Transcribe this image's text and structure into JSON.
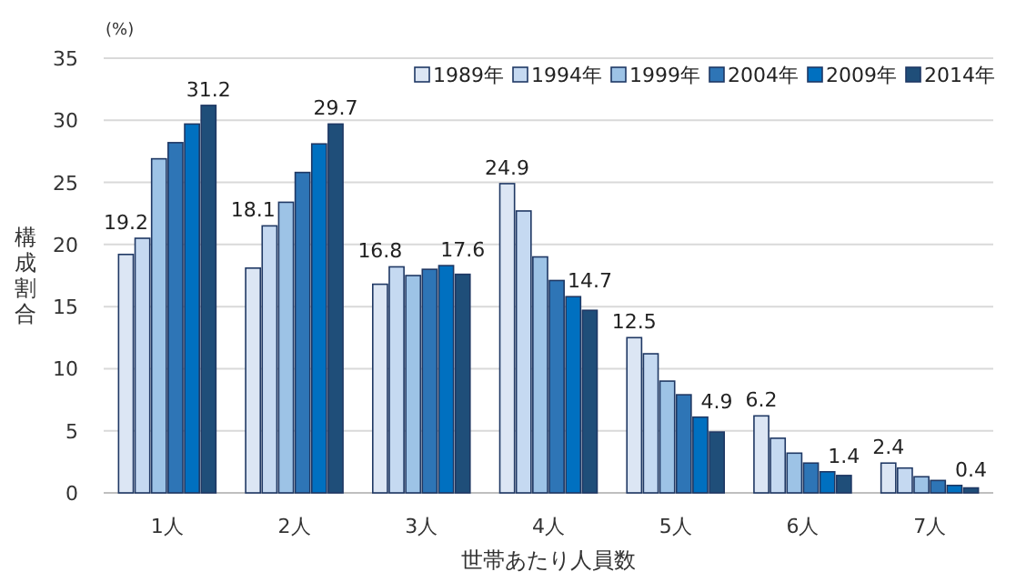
{
  "chart_data": {
    "type": "bar",
    "xlabel": "世帯あたり人員数",
    "ylabel": "構成割合",
    "annotations": [
      "(%)"
    ],
    "categories": [
      "1人",
      "2人",
      "3人",
      "4人",
      "5人",
      "6人",
      "7人"
    ],
    "ylim": [
      0,
      35
    ],
    "yticks": [
      0,
      5,
      10,
      15,
      20,
      25,
      30,
      35
    ],
    "grid": "y",
    "legend": "top right",
    "series": [
      {
        "name": "1989年",
        "color": "#dce6f4",
        "values": [
          19.2,
          18.1,
          16.8,
          24.9,
          12.5,
          6.2,
          2.4
        ],
        "value_labels": [
          "19.2",
          "18.1",
          "16.8",
          "24.9",
          "12.5",
          "6.2",
          "2.4"
        ]
      },
      {
        "name": "1994年",
        "color": "#c5d9f1",
        "values": [
          20.5,
          21.5,
          18.2,
          22.7,
          11.2,
          4.4,
          2.0
        ]
      },
      {
        "name": "1999年",
        "color": "#9dc3e6",
        "values": [
          26.9,
          23.4,
          17.5,
          19.0,
          9.0,
          3.2,
          1.3
        ]
      },
      {
        "name": "2004年",
        "color": "#2e75b6",
        "values": [
          28.2,
          25.8,
          18.0,
          17.1,
          7.9,
          2.4,
          1.0
        ]
      },
      {
        "name": "2009年",
        "color": "#0070c0",
        "values": [
          29.7,
          28.1,
          18.3,
          15.8,
          6.1,
          1.7,
          0.6
        ]
      },
      {
        "name": "2014年",
        "color": "#1f4e79",
        "values": [
          31.2,
          29.7,
          17.6,
          14.7,
          4.9,
          1.4,
          0.4
        ],
        "value_labels": [
          "31.2",
          "29.7",
          "17.6",
          "14.7",
          "4.9",
          "1.4",
          "0.4"
        ]
      }
    ]
  }
}
